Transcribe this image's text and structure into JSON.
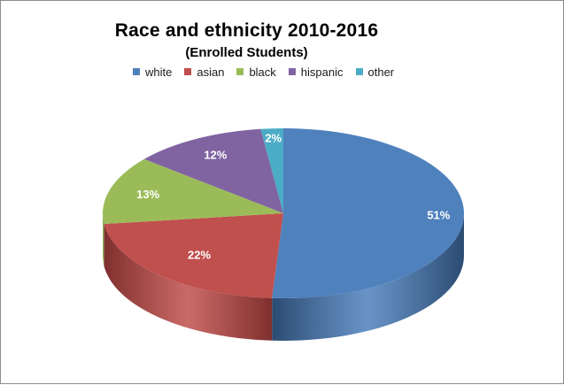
{
  "chart_data": {
    "type": "pie",
    "title": "Race and ethnicity 2010-2016",
    "subtitle": "(Enrolled Students)",
    "legend_position": "top",
    "three_d": true,
    "categories": [
      "white",
      "asian",
      "black",
      "hispanic",
      "other"
    ],
    "values": [
      51,
      22,
      13,
      12,
      2
    ],
    "labels": [
      "51%",
      "22%",
      "13%",
      "12%",
      "2%"
    ],
    "colors": [
      "#4f81bd",
      "#c0504d",
      "#9bbb59",
      "#8064a2",
      "#4bacc6"
    ],
    "side_colors": [
      "#2b4b72",
      "#7e2f2d",
      "#627a33",
      "#4e3c66",
      "#2c7488"
    ]
  }
}
